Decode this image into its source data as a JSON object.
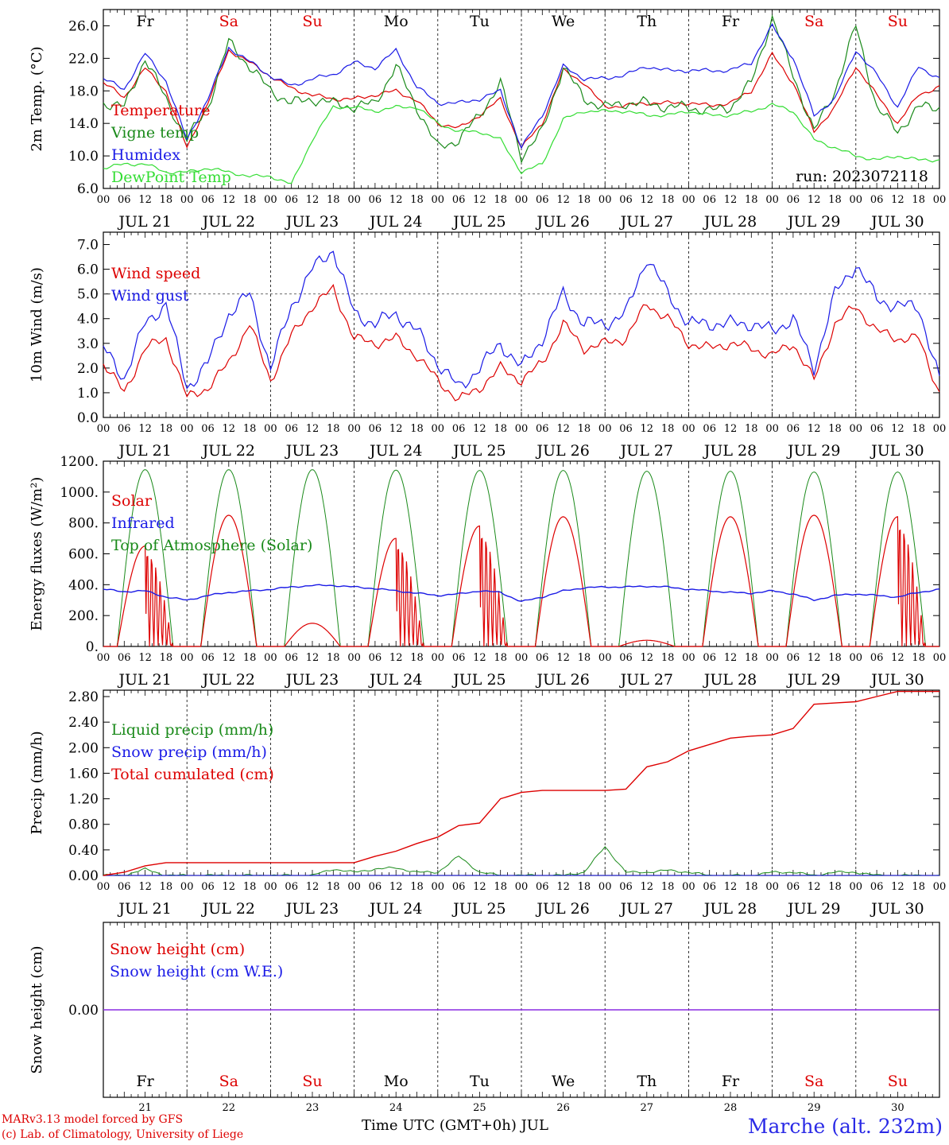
{
  "meta": {
    "run_label": "run: 2023072118",
    "model_line": "MARv3.13 model forced by GFS",
    "lab_line": "(c) Lab. of Climatology, University of Liege",
    "x_title": "Time UTC (GMT+0h) JUL",
    "station": "Marche (alt. 232m)"
  },
  "days": {
    "weekday": [
      "Fr",
      "Sa",
      "Su",
      "Mo",
      "Tu",
      "We",
      "Th",
      "Fr",
      "Sa",
      "Su"
    ],
    "weekend": [
      false,
      true,
      true,
      false,
      false,
      false,
      false,
      false,
      true,
      true
    ],
    "date_labels": [
      "JUL 21",
      "JUL 22",
      "JUL 23",
      "JUL 24",
      "JUL 25",
      "JUL 26",
      "JUL 27",
      "JUL 28",
      "JUL 29",
      "JUL 30"
    ],
    "day_numbers": [
      "21",
      "22",
      "23",
      "24",
      "25",
      "26",
      "27",
      "28",
      "29",
      "30"
    ],
    "hour_ticks": [
      "00",
      "06",
      "12",
      "18"
    ],
    "end_tick": "00"
  },
  "colors": {
    "red": "#dd0000",
    "green": "#1a8a1a",
    "blue": "#1a1ae6",
    "lightgreen": "#33dd33",
    "purple": "#8a2be2",
    "weekend": "#dd0000"
  },
  "chart_data": [
    {
      "id": "temp",
      "type": "line",
      "ylabel": "2m Temp. (°C)",
      "ylim": [
        6,
        28
      ],
      "ticks": [
        "6.0",
        "10.0",
        "14.0",
        "18.0",
        "22.0",
        "26.0"
      ],
      "x_hours": [
        0,
        6,
        12,
        18,
        24,
        30,
        36,
        42,
        48,
        54,
        60,
        66,
        72,
        78,
        84,
        90,
        96,
        102,
        108,
        114,
        120,
        126,
        132,
        138,
        144,
        150,
        156,
        162,
        168,
        174,
        180,
        186,
        192,
        198,
        204,
        210,
        216,
        222,
        228,
        234,
        240
      ],
      "series": [
        {
          "name": "Temperature",
          "color": "red",
          "values": [
            19,
            17.2,
            20.8,
            18,
            11,
            16.5,
            23,
            21.5,
            19.8,
            18.3,
            17.5,
            17,
            17,
            17.5,
            18,
            16.8,
            14,
            13.4,
            15,
            17,
            11,
            14,
            20.5,
            19,
            16,
            16.2,
            16.5,
            16.5,
            16.5,
            16.2,
            16.5,
            18,
            22.5,
            19,
            13,
            16,
            21,
            17.5,
            14,
            17.5,
            18.5
          ]
        },
        {
          "name": "Vigne temp",
          "color": "green",
          "values": [
            16.5,
            16,
            22,
            17,
            12,
            16,
            24,
            21,
            18,
            16.5,
            17,
            16.5,
            16,
            16.5,
            21,
            16,
            11,
            12,
            15,
            19,
            10,
            13,
            21,
            17,
            16,
            16.5,
            16.5,
            16,
            16,
            15.5,
            16,
            19,
            27,
            20,
            13,
            18,
            26,
            16,
            13,
            16,
            16
          ]
        },
        {
          "name": "Humidex",
          "color": "blue",
          "values": [
            19.5,
            18.2,
            22.6,
            19.2,
            12,
            17,
            23.3,
            21.6,
            19.8,
            18.6,
            19.5,
            20,
            21.5,
            20.8,
            23,
            18.5,
            16.5,
            16.5,
            17,
            18,
            11,
            15,
            21,
            19.5,
            19.5,
            20,
            21,
            20.5,
            20.5,
            20.5,
            20.5,
            21.5,
            26,
            22,
            15,
            17,
            23,
            20,
            16,
            21,
            19.5
          ]
        },
        {
          "name": "DewPoint Temp",
          "color": "lightgreen",
          "values": [
            8.5,
            9,
            9,
            8,
            8,
            8.5,
            8,
            7.5,
            7.5,
            6.5,
            12,
            16,
            16,
            15.5,
            16,
            16,
            14,
            13,
            13,
            12,
            8,
            9,
            14.5,
            15.5,
            15.5,
            15.5,
            15,
            15,
            15.5,
            15,
            15,
            15.5,
            16.3,
            15.5,
            12,
            11,
            10,
            9.5,
            10,
            9.5,
            9.5
          ]
        }
      ]
    },
    {
      "id": "wind",
      "type": "line",
      "ylabel": "10m Wind (m/s)",
      "ylim": [
        0,
        7.5
      ],
      "ticks": [
        "0.0",
        "1.0",
        "2.0",
        "3.0",
        "4.0",
        "5.0",
        "6.0",
        "7.0"
      ],
      "x_hours": [
        0,
        6,
        12,
        18,
        24,
        30,
        36,
        42,
        48,
        54,
        60,
        66,
        72,
        78,
        84,
        90,
        96,
        102,
        108,
        114,
        120,
        126,
        132,
        138,
        144,
        150,
        156,
        162,
        168,
        174,
        180,
        186,
        192,
        198,
        204,
        210,
        216,
        222,
        228,
        234,
        240
      ],
      "series": [
        {
          "name": "Wind speed",
          "color": "red",
          "values": [
            2.2,
            1,
            2.8,
            3.2,
            0.8,
            1.2,
            2.2,
            3.8,
            1.5,
            3.3,
            4.5,
            5.2,
            3.2,
            3,
            3.2,
            2.5,
            1.5,
            0.7,
            1.2,
            2,
            1.5,
            2.2,
            3.8,
            2.8,
            3,
            3.2,
            4.6,
            4,
            3,
            2.8,
            3,
            2.8,
            2.5,
            3,
            1.5,
            3.8,
            4.5,
            3.5,
            3.2,
            3.2,
            1
          ]
        },
        {
          "name": "Wind gust",
          "color": "blue",
          "values": [
            2.8,
            1.6,
            3.8,
            4.6,
            1.2,
            2.2,
            4.2,
            5,
            2,
            4.5,
            6,
            6.8,
            4.2,
            3.8,
            4.2,
            3.5,
            2.2,
            1.2,
            2,
            3,
            2,
            3.2,
            5,
            3.8,
            3.8,
            4.2,
            6.5,
            5,
            3.8,
            3.8,
            3.8,
            3.8,
            3.5,
            4,
            2,
            5,
            6.2,
            4.8,
            4.5,
            4.5,
            1.5
          ]
        }
      ]
    },
    {
      "id": "energy",
      "type": "line",
      "ylabel": "Energy fluxes (W/m²)",
      "ylim": [
        0,
        1200
      ],
      "ticks": [
        "0.",
        "200.",
        "400.",
        "600.",
        "800.",
        "1000.",
        "1200."
      ],
      "x_hours": [
        0,
        6,
        12,
        18,
        24,
        30,
        36,
        42,
        48,
        54,
        60,
        66,
        72,
        78,
        84,
        90,
        96,
        102,
        108,
        114,
        120,
        126,
        132,
        138,
        144,
        150,
        156,
        162,
        168,
        174,
        180,
        186,
        192,
        198,
        204,
        210,
        216,
        222,
        228,
        234,
        240
      ],
      "daily_peaks": {
        "Solar": [
          650,
          850,
          150,
          700,
          780,
          840,
          40,
          840,
          850,
          840
        ],
        "Top of Atmosphere (Solar)": [
          1145,
          1145,
          1145,
          1142,
          1140,
          1140,
          1135,
          1135,
          1130,
          1130
        ]
      },
      "series": [
        {
          "name": "Infrared",
          "color": "blue",
          "values": [
            370,
            355,
            360,
            320,
            300,
            330,
            350,
            360,
            370,
            385,
            395,
            395,
            385,
            375,
            360,
            345,
            330,
            340,
            360,
            350,
            290,
            320,
            360,
            380,
            385,
            385,
            390,
            385,
            370,
            360,
            350,
            345,
            360,
            340,
            300,
            330,
            340,
            330,
            320,
            350,
            370
          ]
        }
      ]
    },
    {
      "id": "precip",
      "type": "line",
      "ylabel": "Precip (mm/h)",
      "ylim": [
        0,
        2.9
      ],
      "ticks": [
        "0.00",
        "0.40",
        "0.80",
        "1.20",
        "1.60",
        "2.00",
        "2.40",
        "2.80"
      ],
      "x_hours": [
        0,
        6,
        12,
        18,
        24,
        30,
        36,
        42,
        48,
        54,
        60,
        66,
        72,
        78,
        84,
        90,
        96,
        102,
        108,
        114,
        120,
        126,
        132,
        138,
        144,
        150,
        156,
        162,
        168,
        174,
        180,
        186,
        192,
        198,
        204,
        210,
        216,
        222,
        228,
        234,
        240
      ],
      "series": [
        {
          "name": "Liquid precip (mm/h)",
          "color": "green",
          "values": [
            0,
            0,
            0.1,
            0,
            0,
            0,
            0,
            0,
            0,
            0,
            0,
            0.1,
            0.05,
            0.1,
            0.12,
            0.05,
            0.05,
            0.3,
            0.05,
            0,
            0,
            0,
            0,
            0.05,
            0.45,
            0.05,
            0.05,
            0.08,
            0.05,
            0,
            0,
            0,
            0.05,
            0.05,
            0,
            0.05,
            0.05,
            0,
            0,
            0,
            0
          ]
        },
        {
          "name": "Snow precip (mm/h)",
          "color": "blue",
          "values": [
            0,
            0,
            0,
            0,
            0,
            0,
            0,
            0,
            0,
            0,
            0,
            0,
            0,
            0,
            0,
            0,
            0,
            0,
            0,
            0,
            0,
            0,
            0,
            0,
            0,
            0,
            0,
            0,
            0,
            0,
            0,
            0,
            0,
            0,
            0,
            0,
            0,
            0,
            0,
            0,
            0
          ]
        },
        {
          "name": "Total cumulated (cm)",
          "color": "red",
          "values": [
            0,
            0.05,
            0.15,
            0.2,
            0.2,
            0.2,
            0.2,
            0.2,
            0.2,
            0.2,
            0.2,
            0.2,
            0.2,
            0.3,
            0.38,
            0.5,
            0.6,
            0.78,
            0.82,
            1.2,
            1.3,
            1.33,
            1.33,
            1.33,
            1.33,
            1.35,
            1.7,
            1.78,
            1.95,
            2.05,
            2.15,
            2.18,
            2.2,
            2.3,
            2.68,
            2.7,
            2.72,
            2.8,
            2.88,
            2.88,
            2.88
          ]
        }
      ]
    },
    {
      "id": "snow",
      "type": "line",
      "ylabel": "Snow height (cm)",
      "ylim": [
        -1,
        1
      ],
      "ticks": [
        "0.00"
      ],
      "x_hours": [
        0,
        240
      ],
      "series": [
        {
          "name": "Snow height (cm)",
          "color": "red",
          "values": [
            0,
            0
          ]
        },
        {
          "name": "Snow height (cm W.E.)",
          "color": "blue",
          "values": [
            0,
            0
          ]
        }
      ]
    }
  ]
}
